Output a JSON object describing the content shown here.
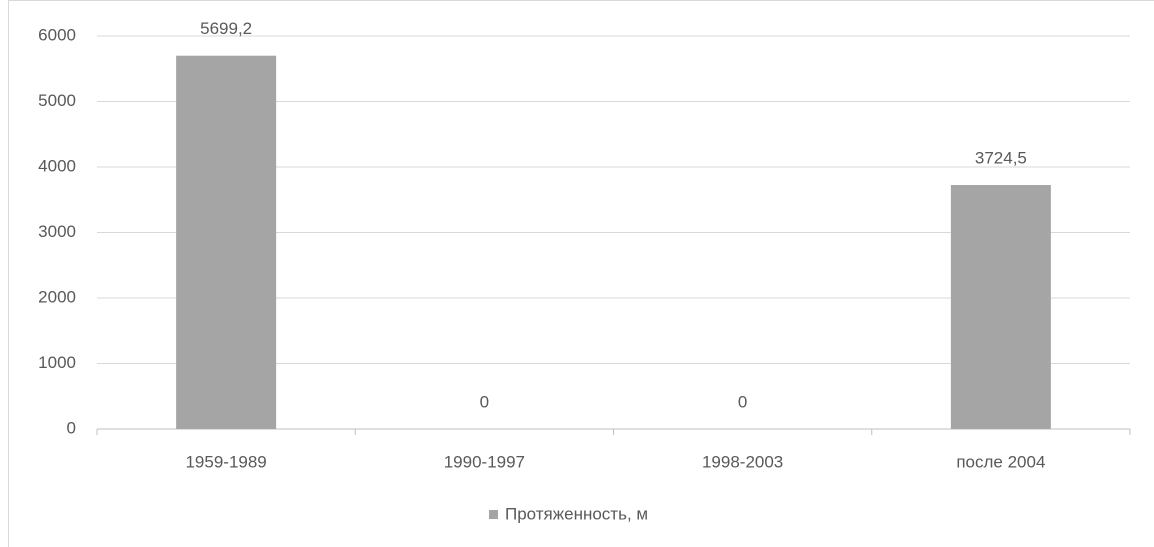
{
  "chart_data": {
    "type": "bar",
    "categories": [
      "1959-1989",
      "1990-1997",
      "1998-2003",
      "после 2004"
    ],
    "series": [
      {
        "name": "Протяженность, м",
        "color": "#a5a5a5",
        "values": [
          5699.2,
          0,
          0,
          3724.5
        ],
        "value_labels": [
          "5699,2",
          "0",
          "0",
          "3724,5"
        ]
      }
    ],
    "ylim": [
      0,
      6000
    ],
    "yticks": [
      0,
      1000,
      2000,
      3000,
      4000,
      5000,
      6000
    ],
    "grid": true,
    "legend": "bottom"
  }
}
